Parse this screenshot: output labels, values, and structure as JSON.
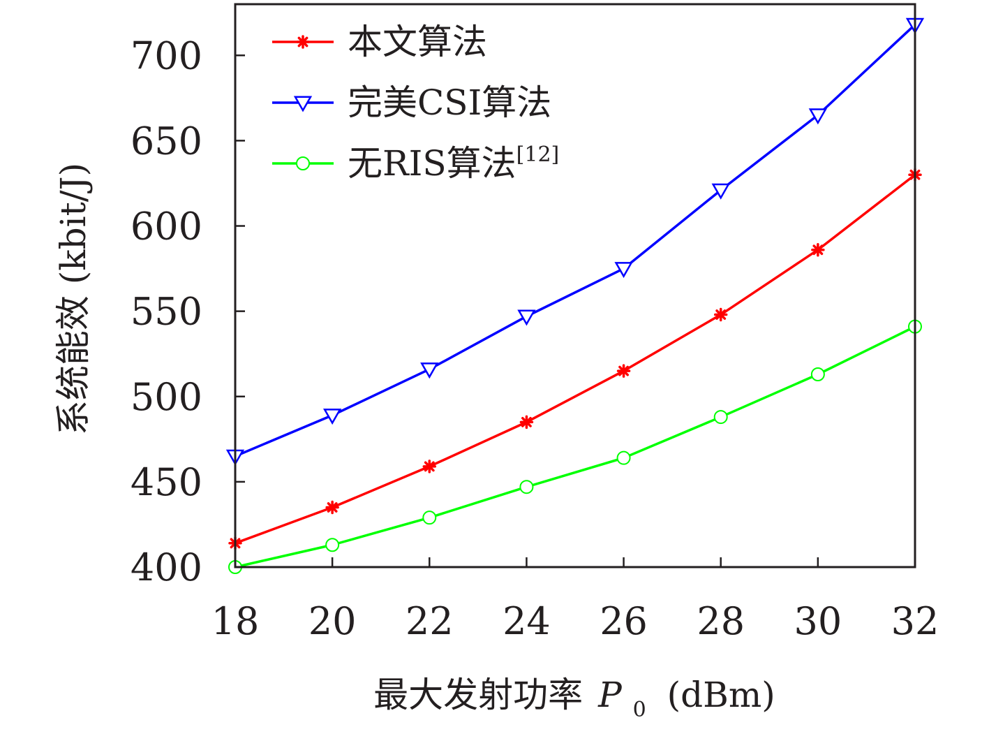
{
  "chart_data": {
    "type": "line",
    "xlabel": "最大发射功率",
    "xlabel_var": "P",
    "xlabel_sub": "0",
    "xlabel_unit": "(dBm)",
    "ylabel": "系统能效 (kbit/J)",
    "x": [
      18,
      20,
      22,
      24,
      26,
      28,
      30,
      32
    ],
    "xlim": [
      18,
      32
    ],
    "ylim": [
      400,
      730
    ],
    "xticks": [
      "18",
      "20",
      "22",
      "24",
      "26",
      "28",
      "30",
      "32"
    ],
    "yticks": [
      "400",
      "450",
      "500",
      "550",
      "600",
      "650",
      "700"
    ],
    "grid": false,
    "legend_position": "top-left",
    "series": [
      {
        "name": "本文算法",
        "name_sup": "",
        "color": "#ff0000",
        "marker": "asterisk",
        "values": [
          414,
          435,
          459,
          485,
          515,
          548,
          586,
          630
        ]
      },
      {
        "name": "完美CSI算法",
        "name_sup": "",
        "color": "#0000ff",
        "marker": "triangle-down",
        "values": [
          465,
          489,
          516,
          547,
          575,
          621,
          665,
          718
        ]
      },
      {
        "name": "无RIS算法",
        "name_sup": "[12]",
        "color": "#00ff00",
        "marker": "circle",
        "values": [
          400,
          413,
          429,
          447,
          464,
          488,
          513,
          541
        ]
      }
    ]
  }
}
